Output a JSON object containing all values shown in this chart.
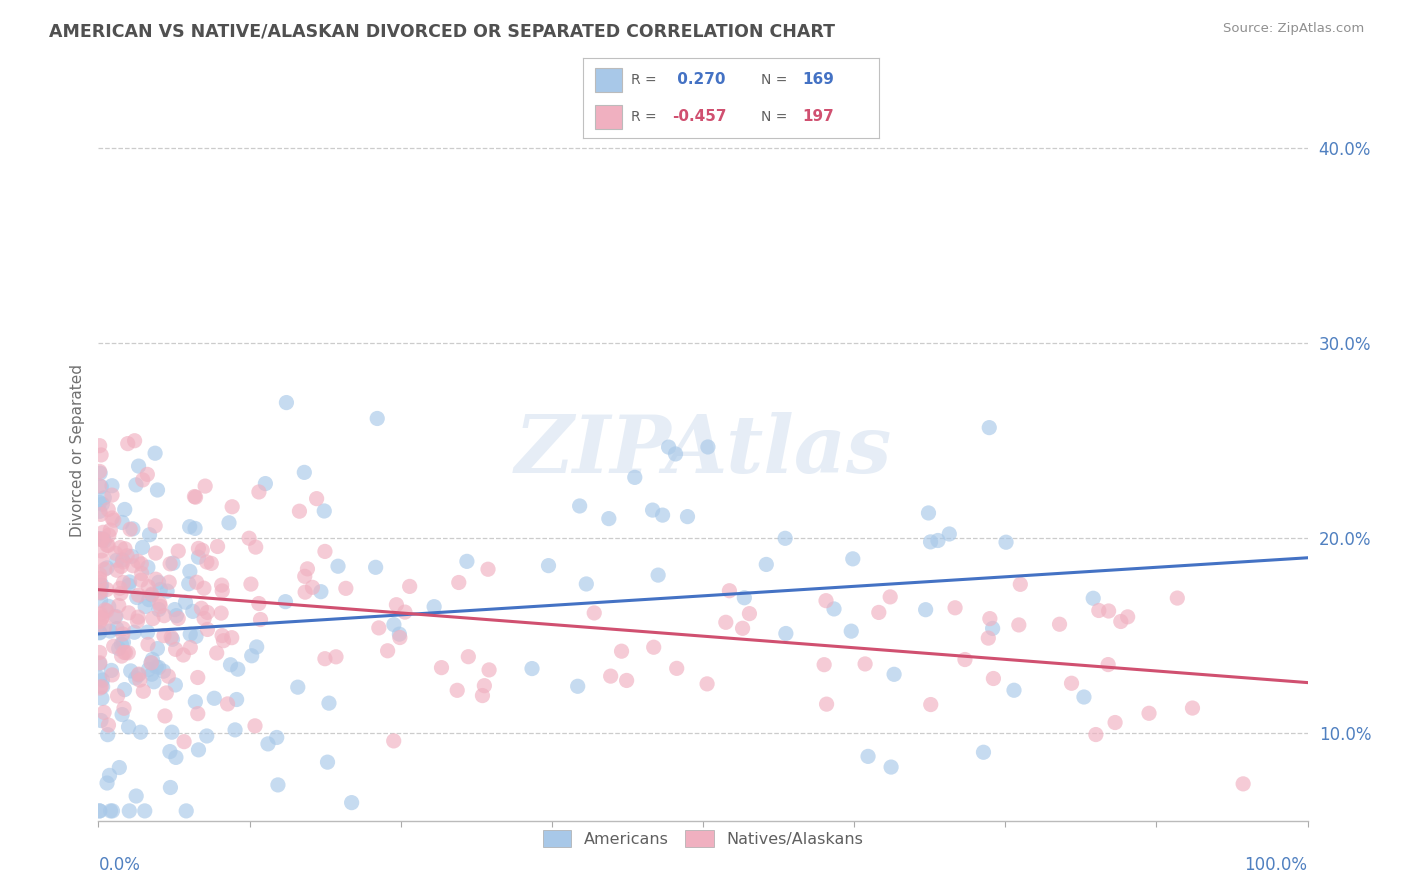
{
  "title": "AMERICAN VS NATIVE/ALASKAN DIVORCED OR SEPARATED CORRELATION CHART",
  "source": "Source: ZipAtlas.com",
  "ylabel": "Divorced or Separated",
  "xlim": [
    0.0,
    1.0
  ],
  "ylim": [
    0.055,
    0.435
  ],
  "yticks": [
    0.1,
    0.2,
    0.3,
    0.4
  ],
  "ytick_labels": [
    "10.0%",
    "20.0%",
    "30.0%",
    "40.0%"
  ],
  "blue_R": 0.27,
  "blue_N": 169,
  "pink_R": -0.457,
  "pink_N": 197,
  "blue_color": "#a8c8e8",
  "pink_color": "#f0b0c0",
  "blue_line_color": "#4472c4",
  "pink_line_color": "#d05070",
  "watermark": "ZIPAtlas",
  "legend_label_blue": "Americans",
  "legend_label_pink": "Natives/Alaskans",
  "background_color": "#ffffff",
  "grid_color": "#cccccc",
  "title_color": "#505050",
  "source_color": "#909090",
  "blue_trend_start": 0.148,
  "blue_trend_end": 0.2,
  "pink_trend_start": 0.17,
  "pink_trend_end": 0.13
}
